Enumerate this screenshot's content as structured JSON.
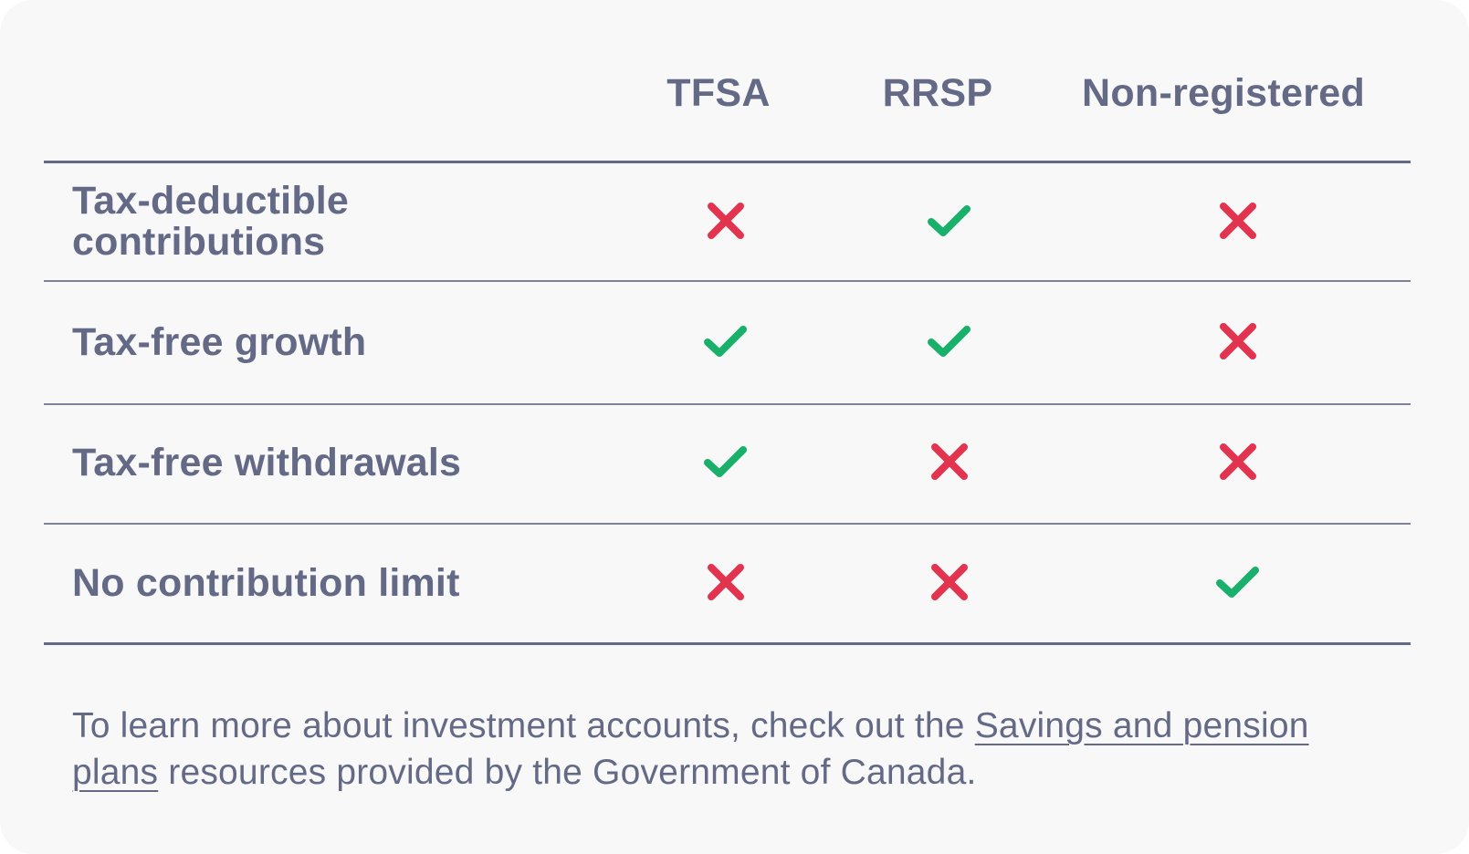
{
  "table": {
    "columns": [
      "TFSA",
      "RRSP",
      "Non-registered"
    ],
    "rows": [
      {
        "label_lines": [
          "Tax-deductible",
          "contributions"
        ],
        "values": [
          "cross",
          "check",
          "cross"
        ]
      },
      {
        "label_lines": [
          "Tax-free growth"
        ],
        "values": [
          "check",
          "check",
          "cross"
        ]
      },
      {
        "label_lines": [
          "Tax-free withdrawals"
        ],
        "values": [
          "check",
          "cross",
          "cross"
        ]
      },
      {
        "label_lines": [
          "No contribution limit"
        ],
        "values": [
          "cross",
          "cross",
          "check"
        ]
      }
    ]
  },
  "footer": {
    "before": "To learn more about investment accounts, check out the ",
    "link": "Savings and pension plans",
    "after": " resources provided by the Government of Canada."
  },
  "colors": {
    "check": "#18b06a",
    "cross": "#e3344f",
    "text": "#646a86",
    "background": "#f8f8f9"
  }
}
